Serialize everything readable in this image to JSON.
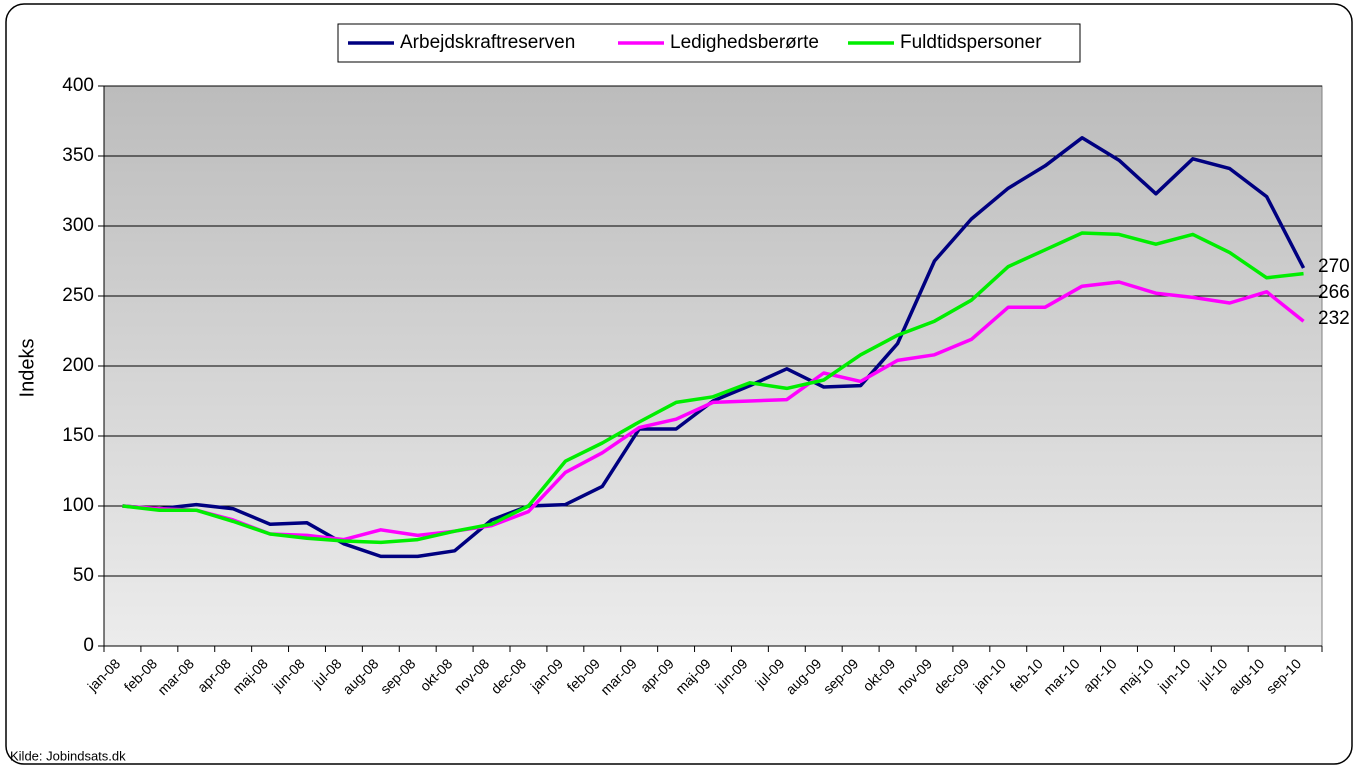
{
  "chart_data": {
    "type": "line",
    "y_label": "Indeks",
    "source": "Kilde: Jobindsats.dk",
    "categories": [
      "jan-08",
      "feb-08",
      "mar-08",
      "apr-08",
      "maj-08",
      "jun-08",
      "jul-08",
      "aug-08",
      "sep-08",
      "okt-08",
      "nov-08",
      "dec-08",
      "jan-09",
      "feb-09",
      "mar-09",
      "apr-09",
      "maj-09",
      "jun-09",
      "jul-09",
      "aug-09",
      "sep-09",
      "okt-09",
      "nov-09",
      "dec-09",
      "jan-10",
      "feb-10",
      "mar-10",
      "apr-10",
      "maj-10",
      "jun-10",
      "jul-10",
      "aug-10",
      "sep-10"
    ],
    "series": [
      {
        "name": "Arbejdskraftreserven",
        "color": "#000080",
        "values": [
          100,
          98,
          101,
          98,
          87,
          88,
          73,
          64,
          64,
          68,
          90,
          100,
          101,
          114,
          155,
          155,
          175,
          186,
          198,
          185,
          186,
          216,
          275,
          305,
          327,
          343,
          363,
          347,
          323,
          348,
          341,
          321,
          270
        ]
      },
      {
        "name": "Ledighedsberørte",
        "color": "#ff00ff",
        "values": [
          100,
          98,
          97,
          90,
          80,
          79,
          76,
          83,
          79,
          82,
          86,
          96,
          124,
          138,
          156,
          162,
          174,
          175,
          176,
          195,
          189,
          204,
          208,
          219,
          242,
          242,
          257,
          260,
          252,
          249,
          245,
          253,
          232
        ]
      },
      {
        "name": "Fuldtidspersoner",
        "color": "#00ee00",
        "values": [
          100,
          97,
          97,
          89,
          80,
          77,
          75,
          74,
          76,
          82,
          87,
          100,
          132,
          145,
          160,
          174,
          178,
          188,
          184,
          190,
          208,
          222,
          232,
          247,
          271,
          283,
          295,
          294,
          287,
          294,
          281,
          263,
          266
        ]
      }
    ],
    "ylim": [
      0,
      400
    ],
    "yticks": [
      0,
      50,
      100,
      150,
      200,
      250,
      300,
      350,
      400
    ],
    "grid": true,
    "legend": "top"
  }
}
